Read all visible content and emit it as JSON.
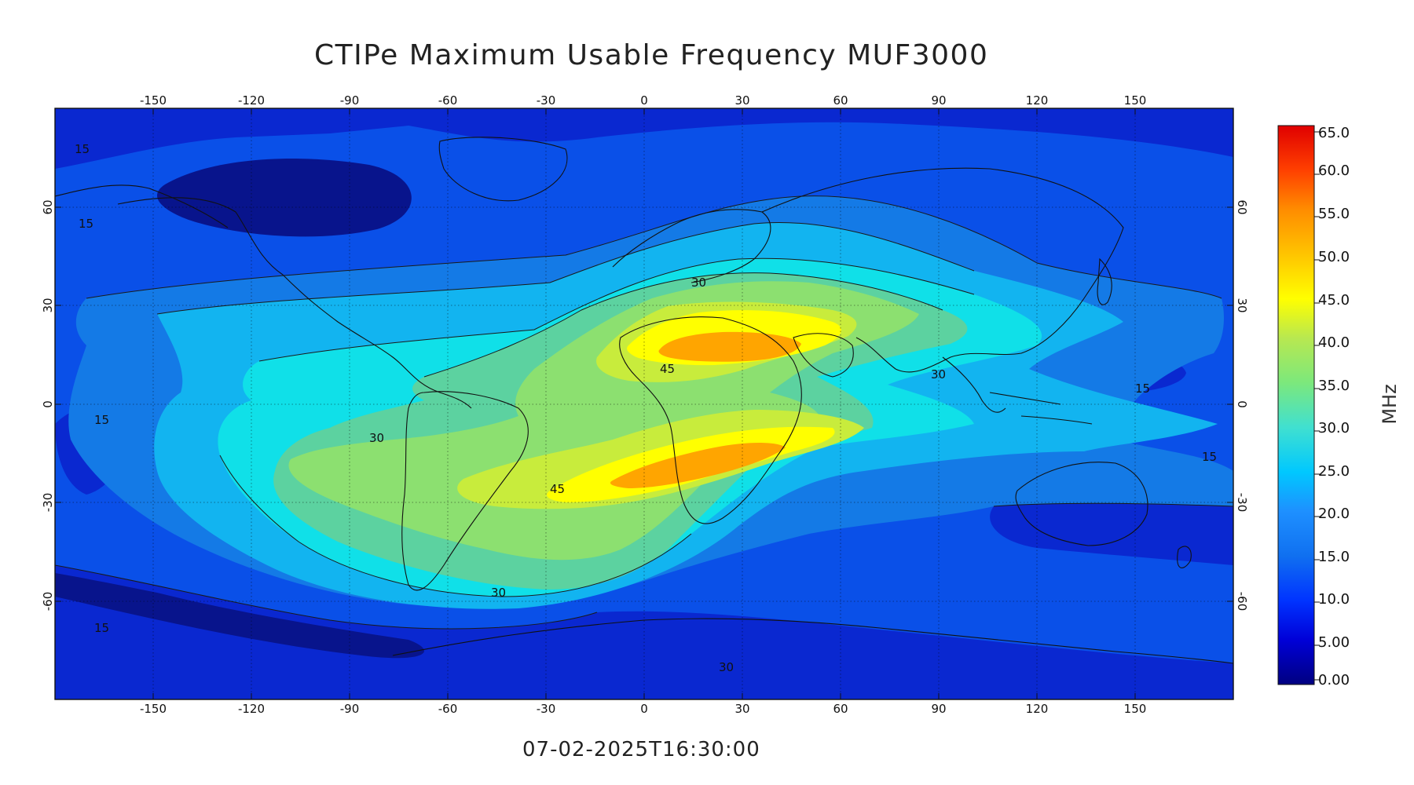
{
  "title": "CTIPe Maximum Usable Frequency MUF3000",
  "timestamp": "07-02-2025T16:30:00",
  "map": {
    "lon_ticks": [
      "-150",
      "-120",
      "-90",
      "-60",
      "-30",
      "0",
      "30",
      "60",
      "90",
      "120",
      "150"
    ],
    "lat_ticks": [
      "60",
      "30",
      "0",
      "-30",
      "-60"
    ],
    "contour_labels": [
      "15",
      "15",
      "15",
      "15",
      "15",
      "15",
      "30",
      "30",
      "30",
      "30",
      "30",
      "45",
      "45"
    ]
  },
  "colorbar": {
    "unit": "MHz",
    "labels": [
      "65.0",
      "60.0",
      "55.0",
      "50.0",
      "45.0",
      "40.0",
      "35.0",
      "30.0",
      "25.0",
      "20.0",
      "15.0",
      "10.0",
      "5.00",
      "0.00"
    ],
    "colors": [
      "#000080",
      "#0000d8",
      "#0033ff",
      "#1070f0",
      "#1e90ff",
      "#00c8ff",
      "#40e0d0",
      "#7ce87c",
      "#b8e850",
      "#ffff00",
      "#ffc400",
      "#ff8c00",
      "#ff4000",
      "#e00000"
    ]
  },
  "colors": {
    "level_0": "#08148c",
    "level_1": "#0a28d0",
    "level_2": "#0a50e8",
    "level_3": "#147ae6",
    "level_4": "#12b4f0",
    "level_5": "#10e0e8",
    "level_6": "#5cd2a0",
    "level_7": "#8ce070",
    "level_8": "#c8ec3c",
    "level_9": "#ffff00",
    "level_10": "#ffa500"
  }
}
